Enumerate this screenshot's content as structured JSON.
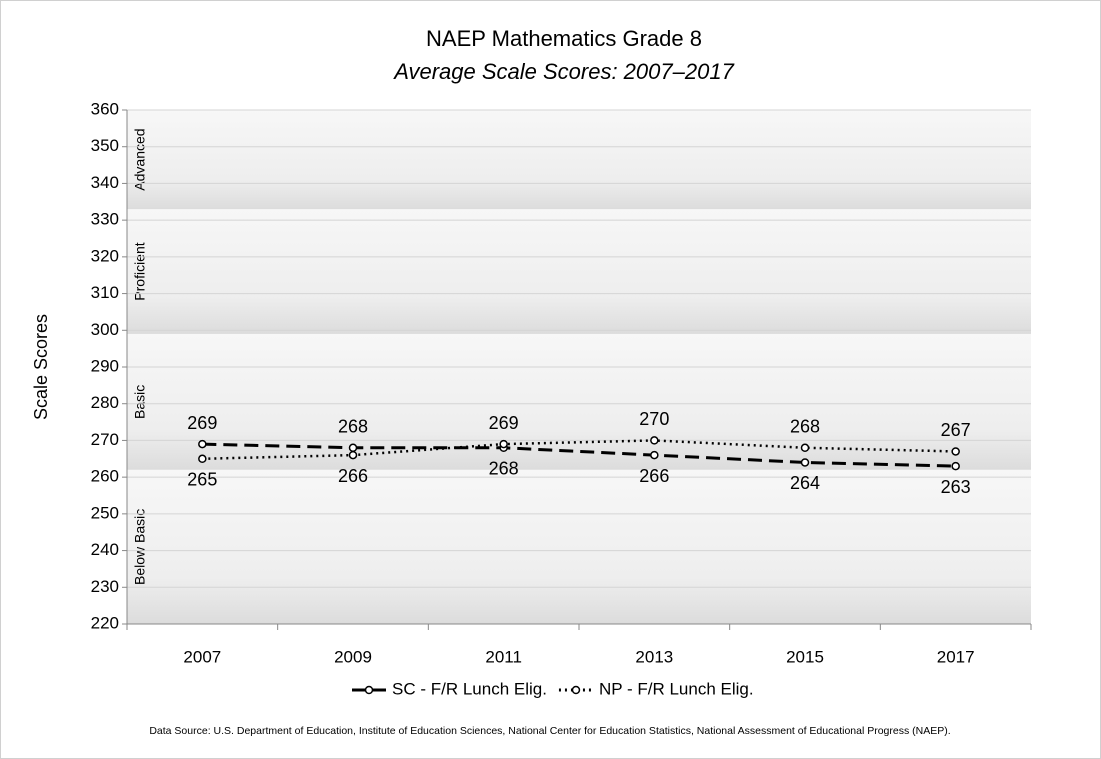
{
  "chart_data": {
    "type": "line",
    "title": "NAEP Mathematics Grade 8",
    "subtitle": "Average Scale Scores: 2007–2017",
    "y_label": "Scale Scores",
    "source": "Data Source: U.S. Department of Education, Institute of Education Sciences, National Center for Education Statistics, National Assessment of Educational Progress (NAEP).",
    "categories": [
      "2007",
      "2009",
      "2011",
      "2013",
      "2015",
      "2017"
    ],
    "series": [
      {
        "name": "SC - F/R Lunch Elig.",
        "color": "#000000",
        "dash": "dashed",
        "values": [
          269,
          268,
          268,
          266,
          264,
          263
        ]
      },
      {
        "name": "NP - F/R Lunch Elig.",
        "color": "#000000",
        "dash": "dotted",
        "values": [
          265,
          266,
          269,
          270,
          268,
          267
        ]
      }
    ],
    "bands": [
      {
        "name": "Below Basic",
        "range": [
          220,
          262
        ]
      },
      {
        "name": "Basic",
        "range": [
          262,
          299
        ]
      },
      {
        "name": "Proficient",
        "range": [
          299,
          333
        ]
      },
      {
        "name": "Advanced",
        "range": [
          333,
          360
        ]
      }
    ],
    "ylim": [
      220,
      360
    ],
    "yticks": [
      220,
      230,
      240,
      250,
      260,
      270,
      280,
      290,
      300,
      310,
      320,
      330,
      340,
      350,
      360
    ],
    "grid": true,
    "legend": "bottom"
  }
}
